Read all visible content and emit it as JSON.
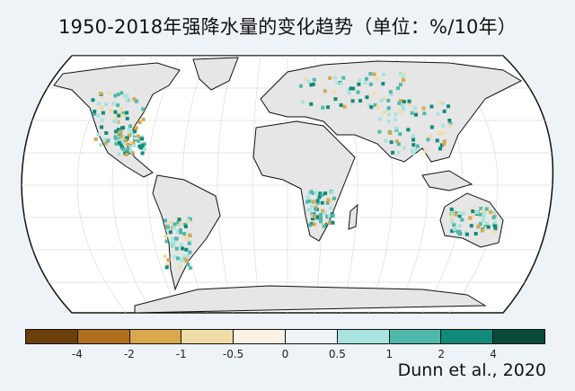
{
  "title": "1950-2018年强降水量的变化趋势（单位：%/10年）",
  "colorbar": {
    "colors": [
      "#6b3f0c",
      "#b06f1c",
      "#d9a74c",
      "#f0dca6",
      "#fbf1e4",
      "#eef3f3",
      "#a9e3de",
      "#4fb8aa",
      "#108a7a",
      "#0a4a3a"
    ],
    "ticks": [
      "-4",
      "-2",
      "-1",
      "-0.5",
      "0",
      "0.5",
      "1",
      "2",
      "4"
    ]
  },
  "credit": "Dunn et al., 2020",
  "map": {
    "projection": "Robinson",
    "land_color": "#e6e6e6",
    "ocean_color": "#ffffff"
  }
}
